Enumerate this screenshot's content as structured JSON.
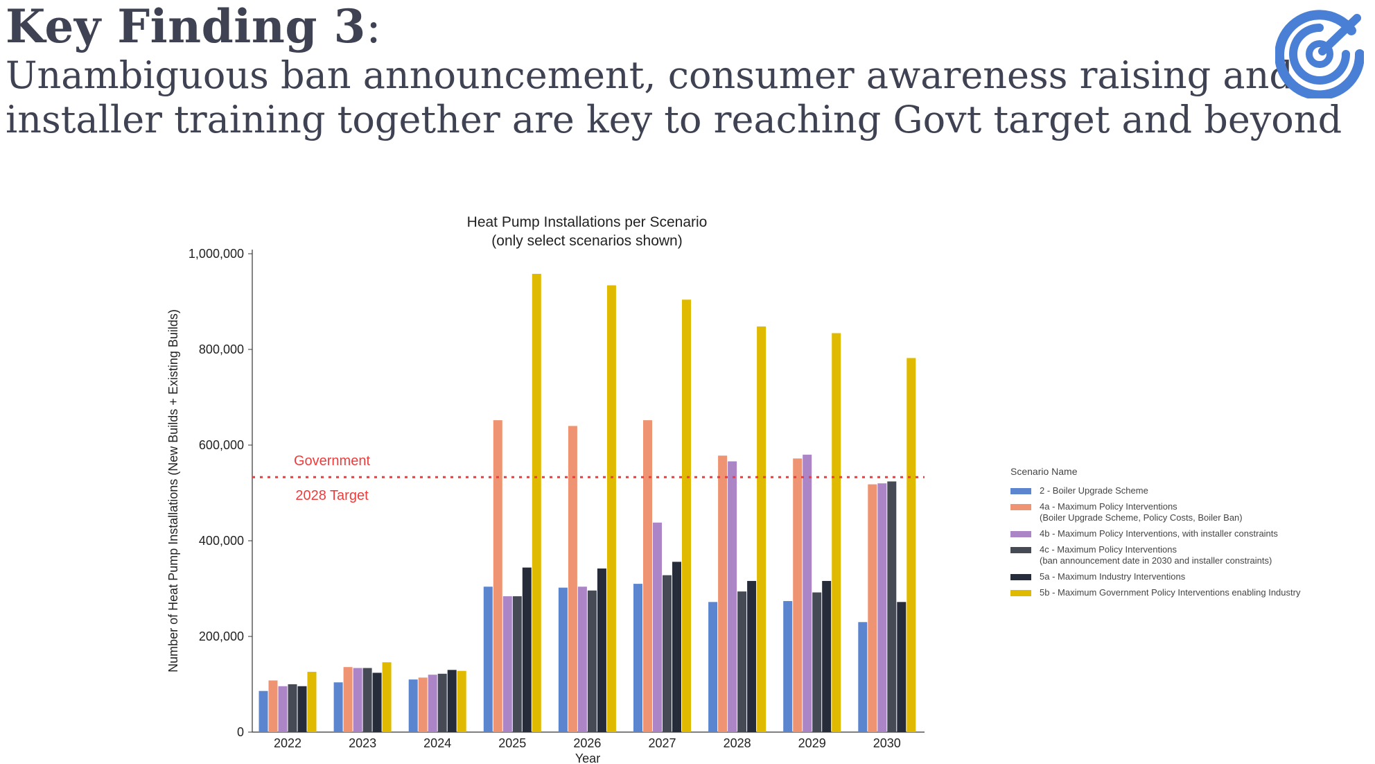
{
  "heading": {
    "title": "Key Finding 3",
    "title_colon": ":",
    "subtitle_line1": "Unambiguous ban announcement, consumer awareness raising and",
    "subtitle_line2": "installer training together are key to reaching Govt target and beyond"
  },
  "logo": {
    "icon": "target-spiral-logo-icon",
    "color": "#4a7fd6"
  },
  "chart_data": {
    "type": "bar",
    "title": "Heat Pump Installations per Scenario",
    "subtitle": "(only select scenarios shown)",
    "xlabel": "Year",
    "ylabel": "Number of Heat Pump Installations (New Builds + Existing Builds)",
    "ylim": [
      0,
      1000000
    ],
    "yticks": [
      0,
      200000,
      400000,
      600000,
      800000,
      1000000
    ],
    "ytick_labels": [
      "0",
      "200,000",
      "400,000",
      "600,000",
      "800,000",
      "1,000,000"
    ],
    "categories": [
      "2022",
      "2023",
      "2024",
      "2025",
      "2026",
      "2027",
      "2028",
      "2029",
      "2030"
    ],
    "series": [
      {
        "name": "2 - Boiler Upgrade Scheme",
        "color": "#5b86cf",
        "values": [
          86000,
          104000,
          110000,
          304000,
          302000,
          310000,
          272000,
          274000,
          230000
        ]
      },
      {
        "name": "4a - Maximum Policy Interventions\n(Boiler Upgrade Scheme, Policy Costs, Boiler Ban)",
        "color": "#ef9472",
        "values": [
          108000,
          136000,
          114000,
          652000,
          640000,
          652000,
          578000,
          572000,
          518000
        ]
      },
      {
        "name": "4b - Maximum Policy Interventions, with installer constraints",
        "color": "#ab85c6",
        "values": [
          96000,
          134000,
          120000,
          284000,
          304000,
          438000,
          566000,
          580000,
          520000
        ]
      },
      {
        "name": "4c - Maximum Policy Interventions\n(ban announcement date in 2030 and installer constraints)",
        "color": "#454a55",
        "values": [
          100000,
          134000,
          122000,
          284000,
          296000,
          328000,
          294000,
          292000,
          524000
        ]
      },
      {
        "name": "5a - Maximum Industry Interventions",
        "color": "#272c3b",
        "values": [
          96000,
          124000,
          130000,
          344000,
          342000,
          356000,
          316000,
          316000,
          272000
        ]
      },
      {
        "name": "5b - Maximum Government Policy Interventions enabling Industry",
        "color": "#dfba00",
        "values": [
          126000,
          146000,
          128000,
          958000,
          934000,
          904000,
          848000,
          834000,
          782000
        ]
      }
    ],
    "target_line": {
      "value": 533000,
      "label_line1": "Government",
      "label_line2": "2028 Target",
      "color": "#ee3c3c"
    },
    "legend": {
      "title": "Scenario Name",
      "placement": "right"
    },
    "grid": false
  }
}
